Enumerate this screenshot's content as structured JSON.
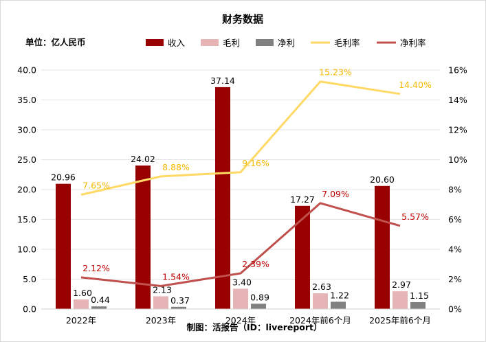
{
  "chart_data": {
    "type": "bar",
    "title": "财务数据",
    "unit_label": "单位：亿人民币",
    "source_note": "制图：活报告（ID：livereport）",
    "categories": [
      "2022年",
      "2023年",
      "2024年",
      "2024年前6个月",
      "2025年前6个月"
    ],
    "y_left": {
      "range": [
        0,
        40
      ],
      "ticks": [
        "0.0",
        "5.0",
        "10.0",
        "15.0",
        "20.0",
        "25.0",
        "30.0",
        "35.0",
        "40.0"
      ]
    },
    "y_right": {
      "range": [
        0,
        16
      ],
      "ticks": [
        "0%",
        "2%",
        "4%",
        "6%",
        "8%",
        "10%",
        "12%",
        "14%",
        "16%"
      ]
    },
    "grid": true,
    "legend_position": "top",
    "bar_series": [
      {
        "name": "收入",
        "color": "#990000",
        "values": [
          20.96,
          24.02,
          37.14,
          17.27,
          20.6
        ],
        "labels": [
          "20.96",
          "24.02",
          "37.14",
          "17.27",
          "20.60"
        ]
      },
      {
        "name": "毛利",
        "color": "#e6b4b4",
        "values": [
          1.6,
          2.13,
          3.4,
          2.63,
          2.97
        ],
        "labels": [
          "1.60",
          "2.13",
          "3.40",
          "2.63",
          "2.97"
        ]
      },
      {
        "name": "净利",
        "color": "#808080",
        "values": [
          0.44,
          0.37,
          0.89,
          1.22,
          1.15
        ],
        "labels": [
          "0.44",
          "0.37",
          "0.89",
          "1.22",
          "1.15"
        ]
      }
    ],
    "line_series": [
      {
        "name": "毛利率",
        "color": "#ffd966",
        "label_color": "#f5b800",
        "axis": "right",
        "values": [
          7.65,
          8.88,
          9.16,
          15.23,
          14.4
        ],
        "labels": [
          "7.65%",
          "8.88%",
          "9.16%",
          "15.23%",
          "14.40%"
        ]
      },
      {
        "name": "净利率",
        "color": "#c0504d",
        "label_color": "#c00000",
        "axis": "right",
        "values": [
          2.12,
          1.54,
          2.39,
          7.09,
          5.57
        ],
        "labels": [
          "2.12%",
          "1.54%",
          "2.39%",
          "7.09%",
          "5.57%"
        ]
      }
    ]
  }
}
